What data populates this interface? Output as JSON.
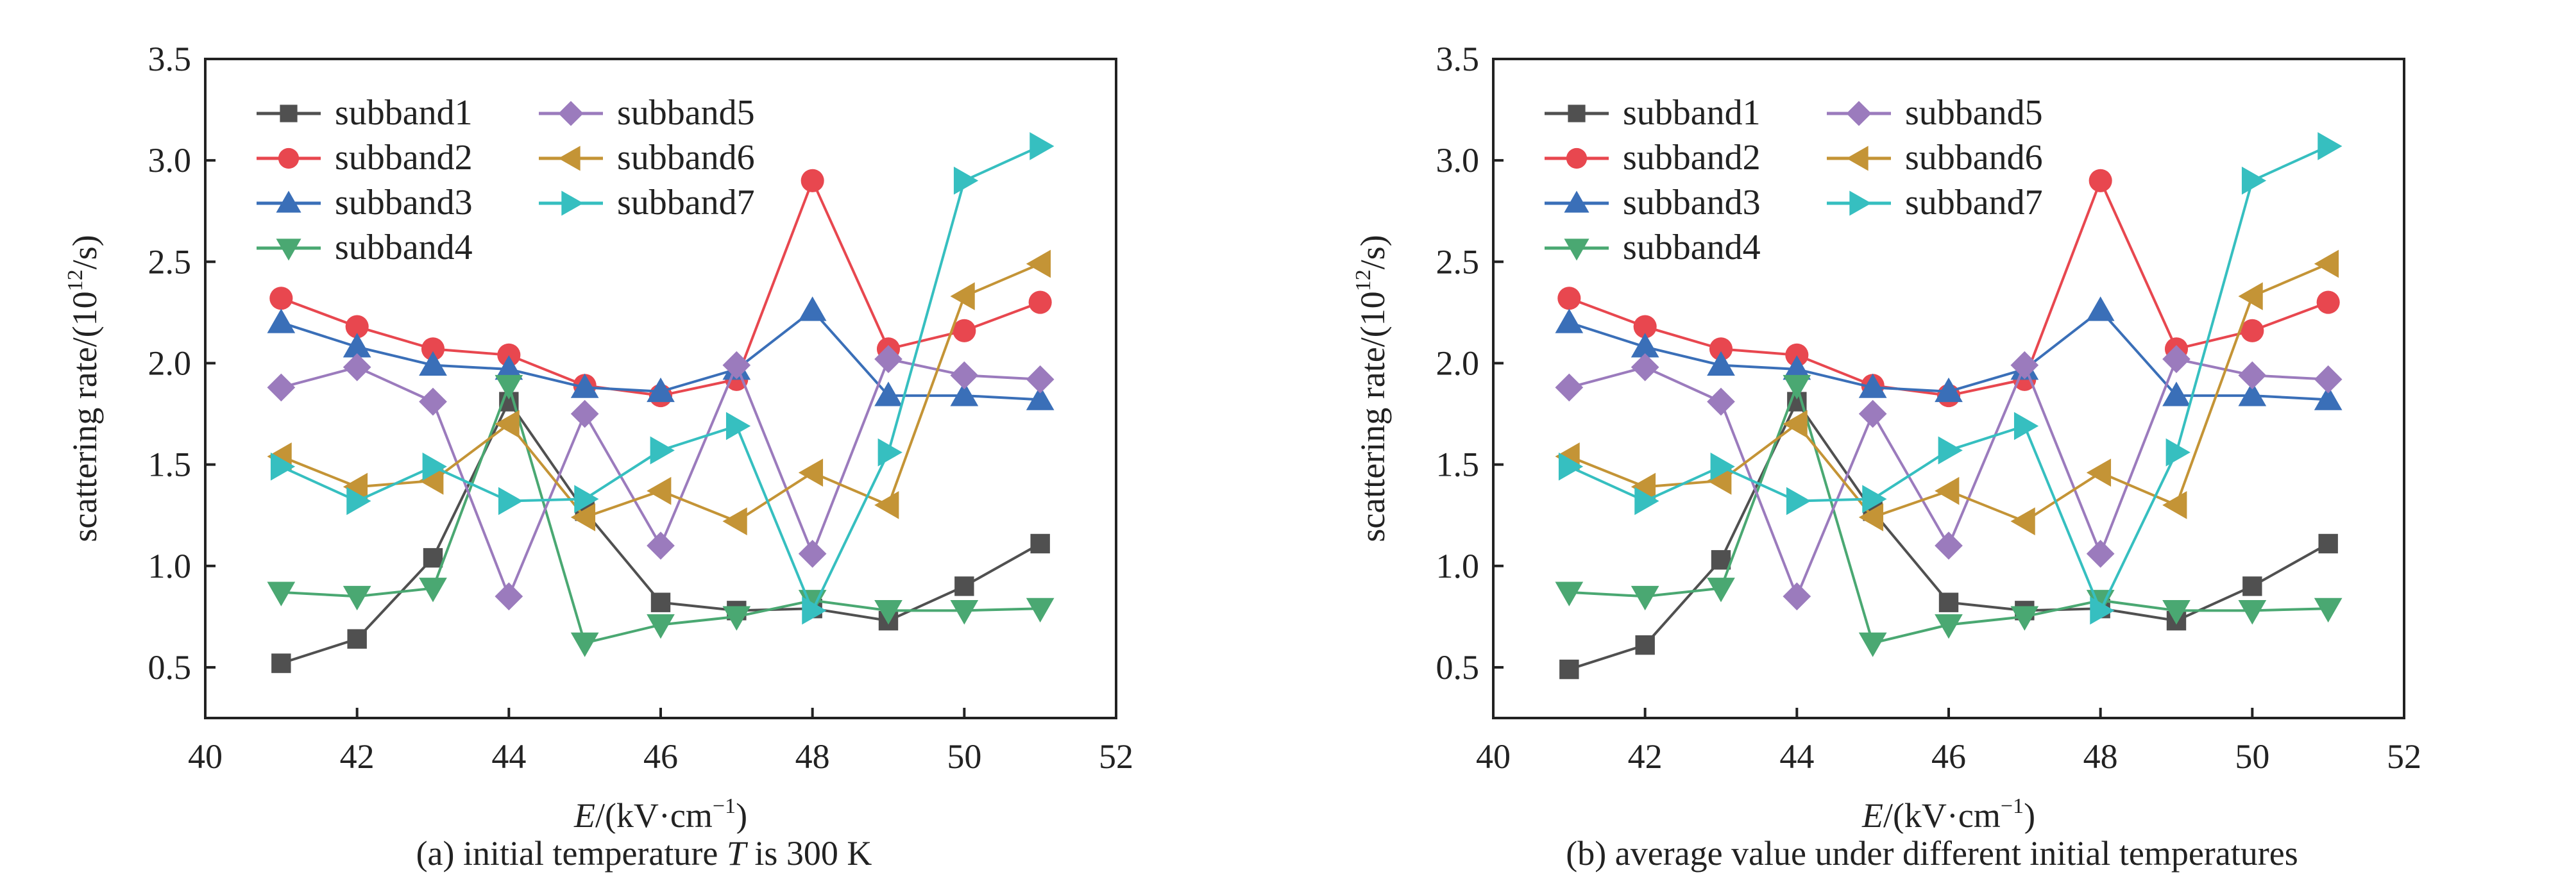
{
  "chart_data": [
    {
      "type": "line",
      "panel": "a",
      "caption": "(a) initial temperature T is 300 K",
      "caption_parts": {
        "prefix": "(a) initial temperature ",
        "italic": "T",
        "suffix": " is 300 K"
      },
      "xlabel": {
        "italic": "E",
        "text": "/(kV·cm",
        "sup": "−1",
        "close": ")"
      },
      "ylabel": {
        "text": "scattering rate/(10",
        "sup": "12",
        "close": "/s)"
      },
      "xlim": [
        40,
        52
      ],
      "ylim": [
        0.25,
        3.5
      ],
      "xticks": [
        40,
        42,
        44,
        46,
        48,
        50,
        52
      ],
      "yticks": [
        0.5,
        1.0,
        1.5,
        2.0,
        2.5,
        3.0,
        3.5
      ],
      "ytick_labels": [
        "0.5",
        "1.0",
        "1.5",
        "2.0",
        "2.5",
        "3.0",
        "3.5"
      ],
      "grid": false,
      "legend_position": "top-left",
      "x": [
        41,
        42,
        43,
        44,
        45,
        46,
        47,
        48,
        49,
        50,
        51
      ],
      "series": [
        {
          "name": "subband1",
          "marker": "square",
          "color": "#505050",
          "values": [
            0.52,
            0.64,
            1.04,
            1.81,
            1.27,
            0.82,
            0.78,
            0.79,
            0.73,
            0.9,
            1.11
          ]
        },
        {
          "name": "subband2",
          "marker": "circle",
          "color": "#e8474f",
          "values": [
            2.32,
            2.18,
            2.07,
            2.04,
            1.89,
            1.84,
            1.92,
            2.9,
            2.07,
            2.16,
            2.3
          ]
        },
        {
          "name": "subband3",
          "marker": "triangle-up",
          "color": "#3a6fb8",
          "values": [
            2.2,
            2.08,
            1.99,
            1.97,
            1.88,
            1.86,
            1.97,
            2.26,
            1.84,
            1.84,
            1.82
          ]
        },
        {
          "name": "subband4",
          "marker": "triangle-down",
          "color": "#4aa872",
          "values": [
            0.87,
            0.85,
            0.89,
            1.89,
            0.62,
            0.71,
            0.75,
            0.83,
            0.78,
            0.78,
            0.79
          ]
        },
        {
          "name": "subband5",
          "marker": "diamond",
          "color": "#9b7bbd",
          "values": [
            1.88,
            1.98,
            1.81,
            0.85,
            1.75,
            1.1,
            1.99,
            1.06,
            2.02,
            1.94,
            1.92
          ]
        },
        {
          "name": "subband6",
          "marker": "triangle-left",
          "color": "#c49436",
          "values": [
            1.54,
            1.39,
            1.42,
            1.7,
            1.24,
            1.37,
            1.22,
            1.46,
            1.3,
            2.33,
            2.49
          ]
        },
        {
          "name": "subband7",
          "marker": "triangle-right",
          "color": "#36bfc0",
          "values": [
            1.49,
            1.32,
            1.49,
            1.32,
            1.33,
            1.57,
            1.69,
            0.78,
            1.56,
            2.9,
            3.07
          ]
        }
      ]
    },
    {
      "type": "line",
      "panel": "b",
      "caption": "(b) average value under different initial temperatures",
      "caption_parts": {
        "prefix": "(b) average value under different initial temperatures",
        "italic": "",
        "suffix": ""
      },
      "xlabel": {
        "italic": "E",
        "text": "/(kV·cm",
        "sup": "−1",
        "close": ")"
      },
      "ylabel": {
        "text": "scattering rate/(10",
        "sup": "12",
        "close": "/s)"
      },
      "xlim": [
        40,
        52
      ],
      "ylim": [
        0.25,
        3.5
      ],
      "xticks": [
        40,
        42,
        44,
        46,
        48,
        50,
        52
      ],
      "yticks": [
        0.5,
        1.0,
        1.5,
        2.0,
        2.5,
        3.0,
        3.5
      ],
      "ytick_labels": [
        "0.5",
        "1.0",
        "1.5",
        "2.0",
        "2.5",
        "3.0",
        "3.5"
      ],
      "grid": false,
      "legend_position": "top-left",
      "x": [
        41,
        42,
        43,
        44,
        45,
        46,
        47,
        48,
        49,
        50,
        51
      ],
      "series": [
        {
          "name": "subband1",
          "marker": "square",
          "color": "#505050",
          "values": [
            0.49,
            0.61,
            1.03,
            1.81,
            1.27,
            0.82,
            0.78,
            0.79,
            0.73,
            0.9,
            1.11
          ]
        },
        {
          "name": "subband2",
          "marker": "circle",
          "color": "#e8474f",
          "values": [
            2.32,
            2.18,
            2.07,
            2.04,
            1.89,
            1.84,
            1.92,
            2.9,
            2.07,
            2.16,
            2.3
          ]
        },
        {
          "name": "subband3",
          "marker": "triangle-up",
          "color": "#3a6fb8",
          "values": [
            2.2,
            2.08,
            1.99,
            1.97,
            1.88,
            1.86,
            1.97,
            2.26,
            1.84,
            1.84,
            1.82
          ]
        },
        {
          "name": "subband4",
          "marker": "triangle-down",
          "color": "#4aa872",
          "values": [
            0.87,
            0.85,
            0.89,
            1.89,
            0.62,
            0.71,
            0.75,
            0.83,
            0.78,
            0.78,
            0.79
          ]
        },
        {
          "name": "subband5",
          "marker": "diamond",
          "color": "#9b7bbd",
          "values": [
            1.88,
            1.98,
            1.81,
            0.85,
            1.75,
            1.1,
            1.99,
            1.06,
            2.02,
            1.94,
            1.92
          ]
        },
        {
          "name": "subband6",
          "marker": "triangle-left",
          "color": "#c49436",
          "values": [
            1.54,
            1.39,
            1.42,
            1.7,
            1.24,
            1.37,
            1.22,
            1.46,
            1.3,
            2.33,
            2.49
          ]
        },
        {
          "name": "subband7",
          "marker": "triangle-right",
          "color": "#36bfc0",
          "values": [
            1.49,
            1.32,
            1.49,
            1.32,
            1.33,
            1.57,
            1.69,
            0.78,
            1.56,
            2.9,
            3.07
          ]
        }
      ]
    }
  ]
}
